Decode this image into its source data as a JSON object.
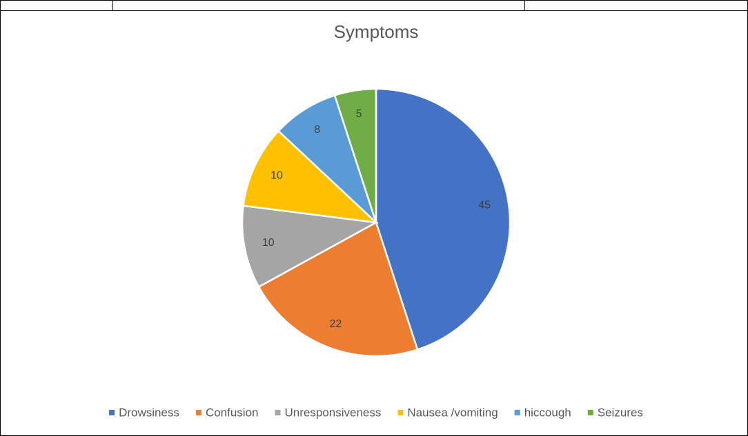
{
  "chart_data": {
    "type": "pie",
    "title": "Symptoms",
    "categories": [
      "Drowsiness",
      "Confusion",
      "Unresponsiveness",
      "Nausea /vomiting",
      "hiccough",
      "Seizures"
    ],
    "values": [
      45,
      22,
      10,
      10,
      8,
      5
    ],
    "colors": [
      "#4472c4",
      "#ed7d31",
      "#a5a5a5",
      "#ffc000",
      "#5b9bd5",
      "#70ad47"
    ],
    "legend": "bottom"
  }
}
